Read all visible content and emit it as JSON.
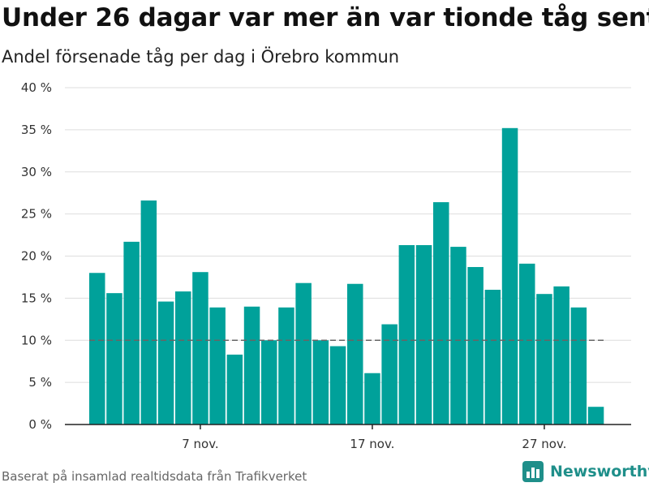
{
  "header": {
    "title": "Under 26 dagar var mer än var tionde tåg sent",
    "subtitle": "Andel försenade tåg per dag i Örebro kommun"
  },
  "footer": {
    "source": "Baserat på insamlad realtidsdata från Trafikverket",
    "brand": "Newsworthy",
    "brand_icon": "newsworthy-logo-icon"
  },
  "colors": {
    "bar": "#00a19a",
    "reference_line": "#666666",
    "grid": "#dddddd",
    "brand": "#1f8f8a"
  },
  "chart_data": {
    "type": "bar",
    "title": "Under 26 dagar var mer än var tionde tåg sent",
    "subtitle": "Andel försenade tåg per dag i Örebro kommun",
    "x_start": "1 nov.",
    "x_tick_labels": [
      "7 nov.",
      "17 nov.",
      "27 nov."
    ],
    "x_tick_days": [
      7,
      17,
      27
    ],
    "days": [
      1,
      2,
      3,
      4,
      5,
      6,
      7,
      8,
      9,
      10,
      11,
      12,
      13,
      14,
      15,
      16,
      17,
      18,
      19,
      20,
      21,
      22,
      23,
      24,
      25,
      26,
      27,
      28,
      29,
      30
    ],
    "values": [
      18.0,
      15.6,
      21.7,
      26.6,
      14.6,
      15.8,
      18.1,
      13.9,
      8.3,
      14.0,
      10.0,
      13.9,
      16.8,
      10.0,
      9.3,
      16.7,
      6.1,
      11.9,
      21.3,
      21.3,
      26.4,
      21.1,
      18.7,
      16.0,
      35.2,
      19.1,
      15.5,
      16.4,
      13.9,
      2.1
    ],
    "y_tick_labels": [
      "0 %",
      "5 %",
      "10 %",
      "15 %",
      "20 %",
      "25 %",
      "30 %",
      "35 %",
      "40 %"
    ],
    "y_ticks": [
      0,
      5,
      10,
      15,
      20,
      25,
      30,
      35,
      40
    ],
    "ylim": [
      0,
      40
    ],
    "reference_line": 10,
    "grid": true,
    "legend": "none"
  }
}
